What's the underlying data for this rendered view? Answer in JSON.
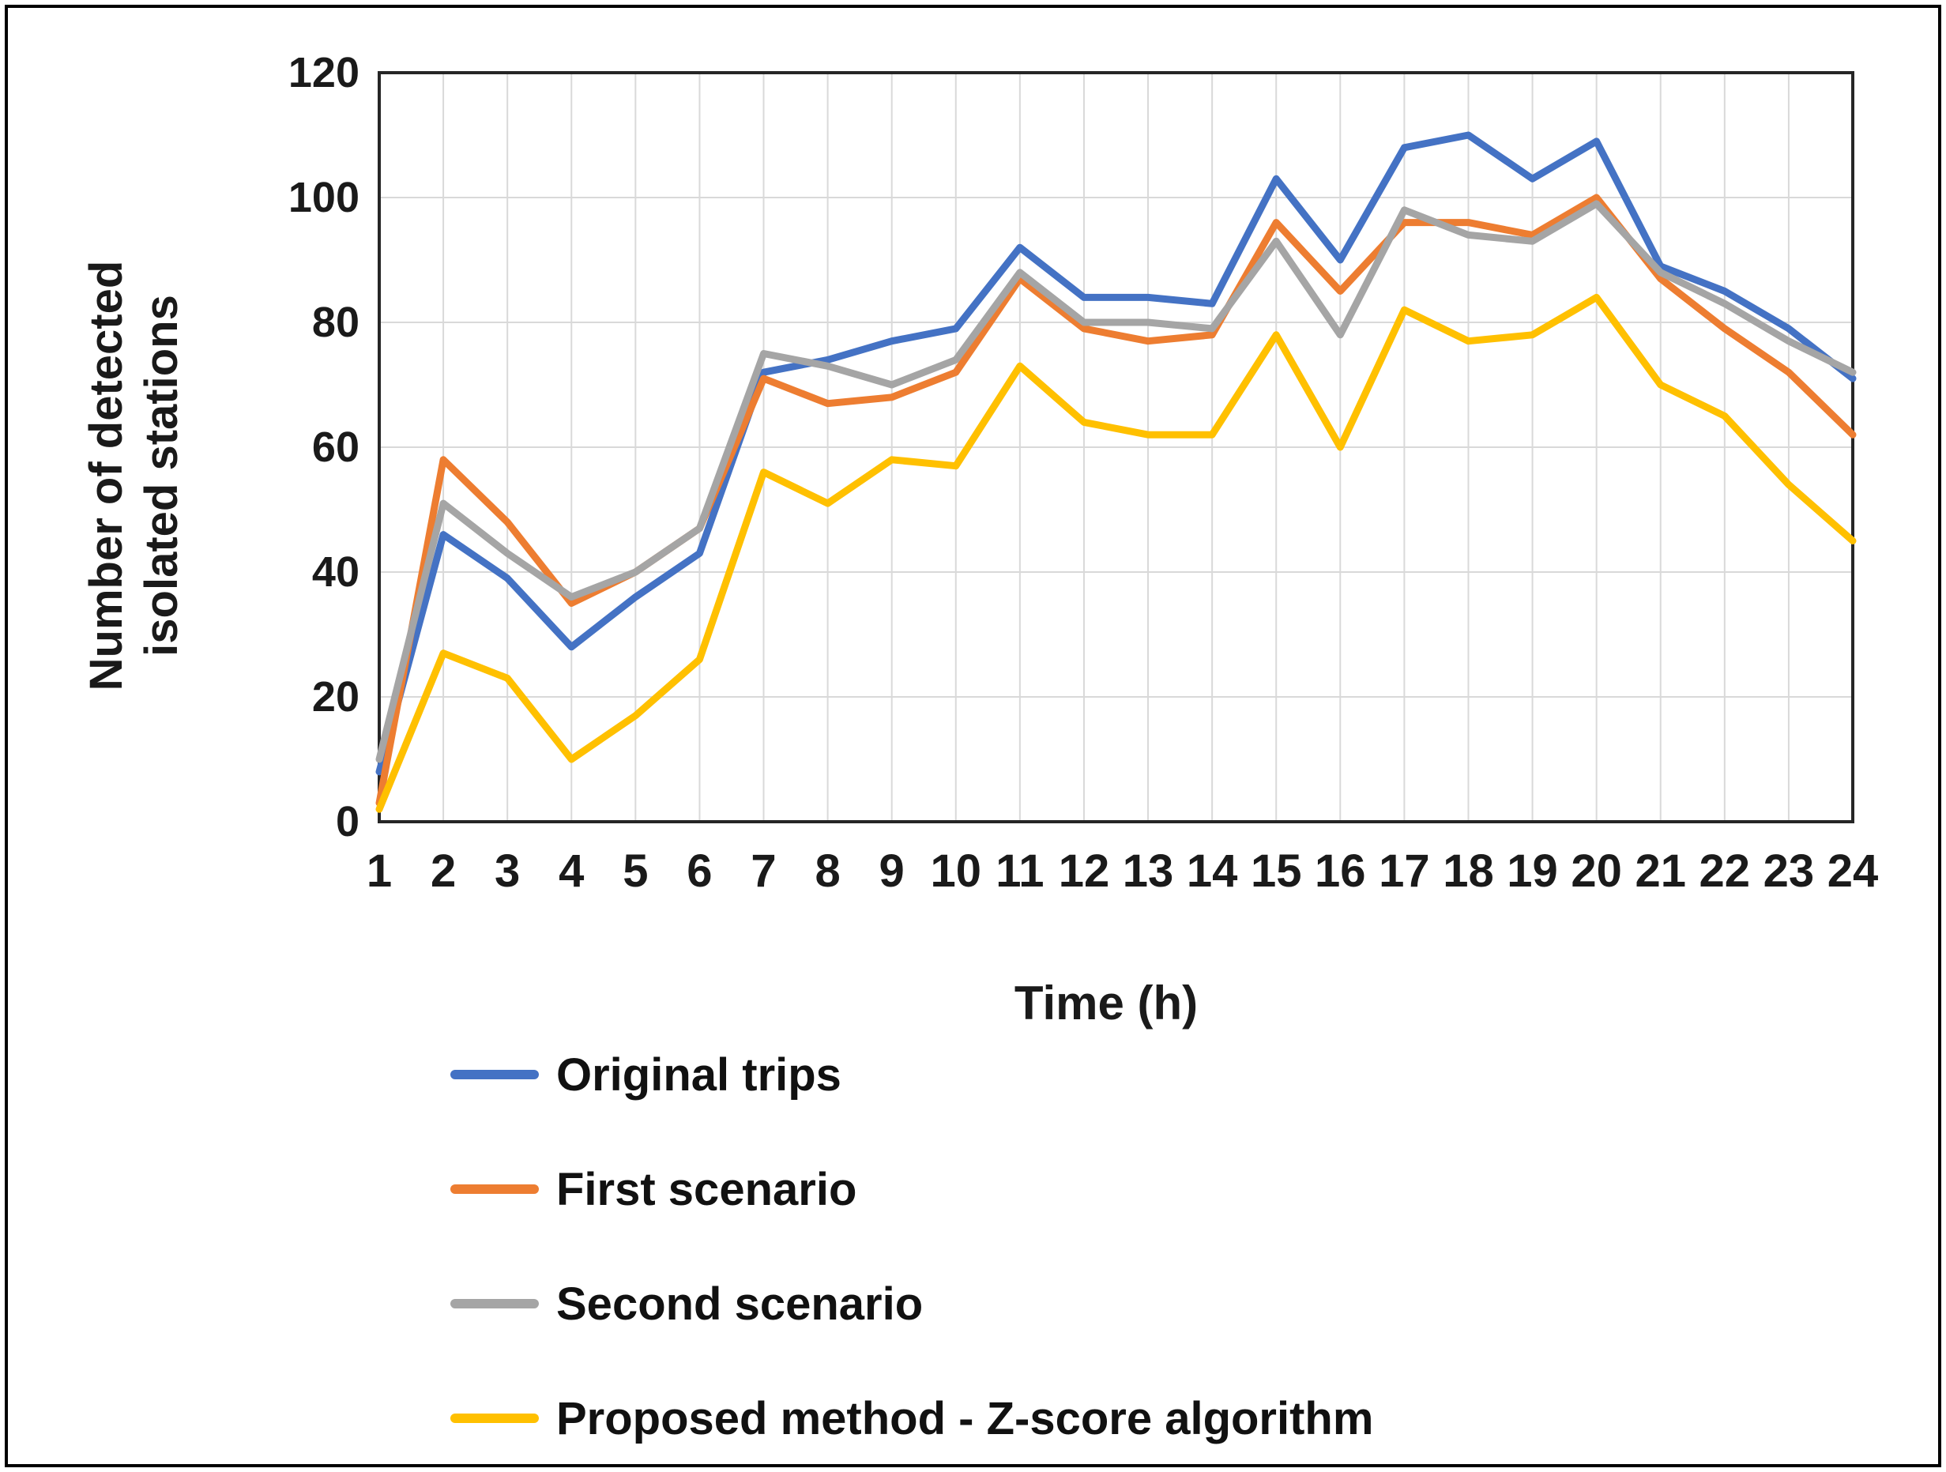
{
  "chart_data": {
    "type": "line",
    "title": "",
    "xlabel": "Time (h)",
    "ylabel": "Number of detected isolated stations",
    "ylabel_display": "Number of detected\nisolated stations",
    "x": [
      1,
      2,
      3,
      4,
      5,
      6,
      7,
      8,
      9,
      10,
      11,
      12,
      13,
      14,
      15,
      16,
      17,
      18,
      19,
      20,
      21,
      22,
      23,
      24
    ],
    "ylim": [
      0,
      120
    ],
    "yticks": [
      0,
      20,
      40,
      60,
      80,
      100,
      120
    ],
    "grid": true,
    "legend_position": "bottom-left",
    "series": [
      {
        "name": "Original trips",
        "color": "#4472C4",
        "values": [
          8,
          46,
          39,
          28,
          36,
          43,
          72,
          74,
          77,
          79,
          92,
          84,
          84,
          83,
          103,
          90,
          108,
          110,
          103,
          109,
          89,
          85,
          79,
          71
        ]
      },
      {
        "name": "First scenario",
        "color": "#ED7D31",
        "values": [
          3,
          58,
          48,
          35,
          40,
          47,
          71,
          67,
          68,
          72,
          87,
          79,
          77,
          78,
          96,
          85,
          96,
          96,
          94,
          100,
          87,
          79,
          72,
          62
        ]
      },
      {
        "name": "Second scenario",
        "color": "#A5A5A5",
        "values": [
          10,
          51,
          43,
          36,
          40,
          47,
          75,
          73,
          70,
          74,
          88,
          80,
          80,
          79,
          93,
          78,
          98,
          94,
          93,
          99,
          88,
          83,
          77,
          72
        ]
      },
      {
        "name": "Proposed method - Z-score algorithm",
        "color": "#FFC000",
        "values": [
          2,
          27,
          23,
          10,
          17,
          26,
          56,
          51,
          58,
          57,
          73,
          64,
          62,
          62,
          78,
          60,
          82,
          77,
          78,
          84,
          70,
          65,
          54,
          45
        ]
      }
    ],
    "colors": {
      "gridline": "#D9D9D9",
      "plot_border": "#262626",
      "text": "#1a1a1a"
    }
  }
}
